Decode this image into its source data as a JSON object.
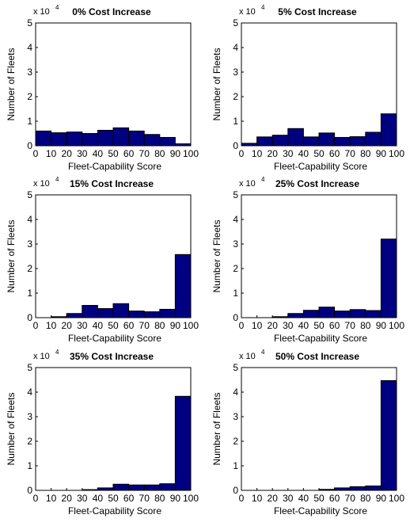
{
  "chart_data": [
    {
      "type": "bar",
      "title": "0% Cost Increase",
      "xlabel": "Fleet-Capability Score",
      "ylabel": "Number of Fleets",
      "y_multiplier": "x 10",
      "y_exponent": "4",
      "categories": [
        "0-10",
        "10-20",
        "20-30",
        "30-40",
        "40-50",
        "50-60",
        "60-70",
        "70-80",
        "80-90",
        "90-100"
      ],
      "values": [
        0.6,
        0.53,
        0.56,
        0.5,
        0.63,
        0.73,
        0.6,
        0.46,
        0.34,
        0.08
      ],
      "xticks": [
        "0",
        "10",
        "20",
        "30",
        "40",
        "50",
        "60",
        "70",
        "80",
        "90",
        "100"
      ],
      "yticks": [
        "0",
        "1",
        "2",
        "3",
        "4",
        "5"
      ],
      "xlim": [
        0,
        100
      ],
      "ylim": [
        0,
        5
      ],
      "grid": false
    },
    {
      "type": "bar",
      "title": "5% Cost Increase",
      "xlabel": "Fleet-Capability Score",
      "ylabel": "Number of Fleets",
      "y_multiplier": "x 10",
      "y_exponent": "4",
      "categories": [
        "0-10",
        "10-20",
        "20-30",
        "30-40",
        "40-50",
        "50-60",
        "60-70",
        "70-80",
        "80-90",
        "90-100"
      ],
      "values": [
        0.1,
        0.36,
        0.43,
        0.7,
        0.36,
        0.52,
        0.34,
        0.37,
        0.55,
        1.3
      ],
      "xticks": [
        "0",
        "10",
        "20",
        "30",
        "40",
        "50",
        "60",
        "70",
        "80",
        "90",
        "100"
      ],
      "yticks": [
        "0",
        "1",
        "2",
        "3",
        "4",
        "5"
      ],
      "xlim": [
        0,
        100
      ],
      "ylim": [
        0,
        5
      ],
      "grid": false
    },
    {
      "type": "bar",
      "title": "15% Cost Increase",
      "xlabel": "Fleet-Capability Score",
      "ylabel": "Number of Fleets",
      "y_multiplier": "x 10",
      "y_exponent": "4",
      "categories": [
        "0-10",
        "10-20",
        "20-30",
        "30-40",
        "40-50",
        "50-60",
        "60-70",
        "70-80",
        "80-90",
        "90-100"
      ],
      "values": [
        0,
        0.04,
        0.17,
        0.5,
        0.37,
        0.57,
        0.27,
        0.24,
        0.34,
        2.57
      ],
      "xticks": [
        "0",
        "10",
        "20",
        "30",
        "40",
        "50",
        "60",
        "70",
        "80",
        "90",
        "100"
      ],
      "yticks": [
        "0",
        "1",
        "2",
        "3",
        "4",
        "5"
      ],
      "xlim": [
        0,
        100
      ],
      "ylim": [
        0,
        5
      ],
      "grid": false
    },
    {
      "type": "bar",
      "title": "25% Cost Increase",
      "xlabel": "Fleet-Capability Score",
      "ylabel": "Number of Fleets",
      "y_multiplier": "x 10",
      "y_exponent": "4",
      "categories": [
        "0-10",
        "10-20",
        "20-30",
        "30-40",
        "40-50",
        "50-60",
        "60-70",
        "70-80",
        "80-90",
        "90-100"
      ],
      "values": [
        0,
        0,
        0.04,
        0.17,
        0.3,
        0.43,
        0.27,
        0.33,
        0.29,
        3.2
      ],
      "xticks": [
        "0",
        "10",
        "20",
        "30",
        "40",
        "50",
        "60",
        "70",
        "80",
        "90",
        "100"
      ],
      "yticks": [
        "0",
        "1",
        "2",
        "3",
        "4",
        "5"
      ],
      "xlim": [
        0,
        100
      ],
      "ylim": [
        0,
        5
      ],
      "grid": false
    },
    {
      "type": "bar",
      "title": "35% Cost Increase",
      "xlabel": "Fleet-Capability Score",
      "ylabel": "Number of Fleets",
      "y_multiplier": "x 10",
      "y_exponent": "4",
      "categories": [
        "0-10",
        "10-20",
        "20-30",
        "30-40",
        "40-50",
        "50-60",
        "60-70",
        "70-80",
        "80-90",
        "90-100"
      ],
      "values": [
        0,
        0,
        0,
        0.03,
        0.1,
        0.25,
        0.22,
        0.22,
        0.27,
        3.83
      ],
      "xticks": [
        "0",
        "10",
        "20",
        "30",
        "40",
        "50",
        "60",
        "70",
        "80",
        "90",
        "100"
      ],
      "yticks": [
        "0",
        "1",
        "2",
        "3",
        "4",
        "5"
      ],
      "xlim": [
        0,
        100
      ],
      "ylim": [
        0,
        5
      ],
      "grid": false
    },
    {
      "type": "bar",
      "title": "50% Cost Increase",
      "xlabel": "Fleet-Capability Score",
      "ylabel": "Number of Fleets",
      "y_multiplier": "x 10",
      "y_exponent": "4",
      "categories": [
        "0-10",
        "10-20",
        "20-30",
        "30-40",
        "40-50",
        "50-60",
        "60-70",
        "70-80",
        "80-90",
        "90-100"
      ],
      "values": [
        0,
        0,
        0,
        0,
        0,
        0.04,
        0.1,
        0.15,
        0.18,
        4.47
      ],
      "xticks": [
        "0",
        "10",
        "20",
        "30",
        "40",
        "50",
        "60",
        "70",
        "80",
        "90",
        "100"
      ],
      "yticks": [
        "0",
        "1",
        "2",
        "3",
        "4",
        "5"
      ],
      "xlim": [
        0,
        100
      ],
      "ylim": [
        0,
        5
      ],
      "grid": false
    }
  ],
  "colors": {
    "bar_fill": "#000080",
    "bar_edge": "#000000",
    "axis": "#000000",
    "background": "#ffffff"
  }
}
